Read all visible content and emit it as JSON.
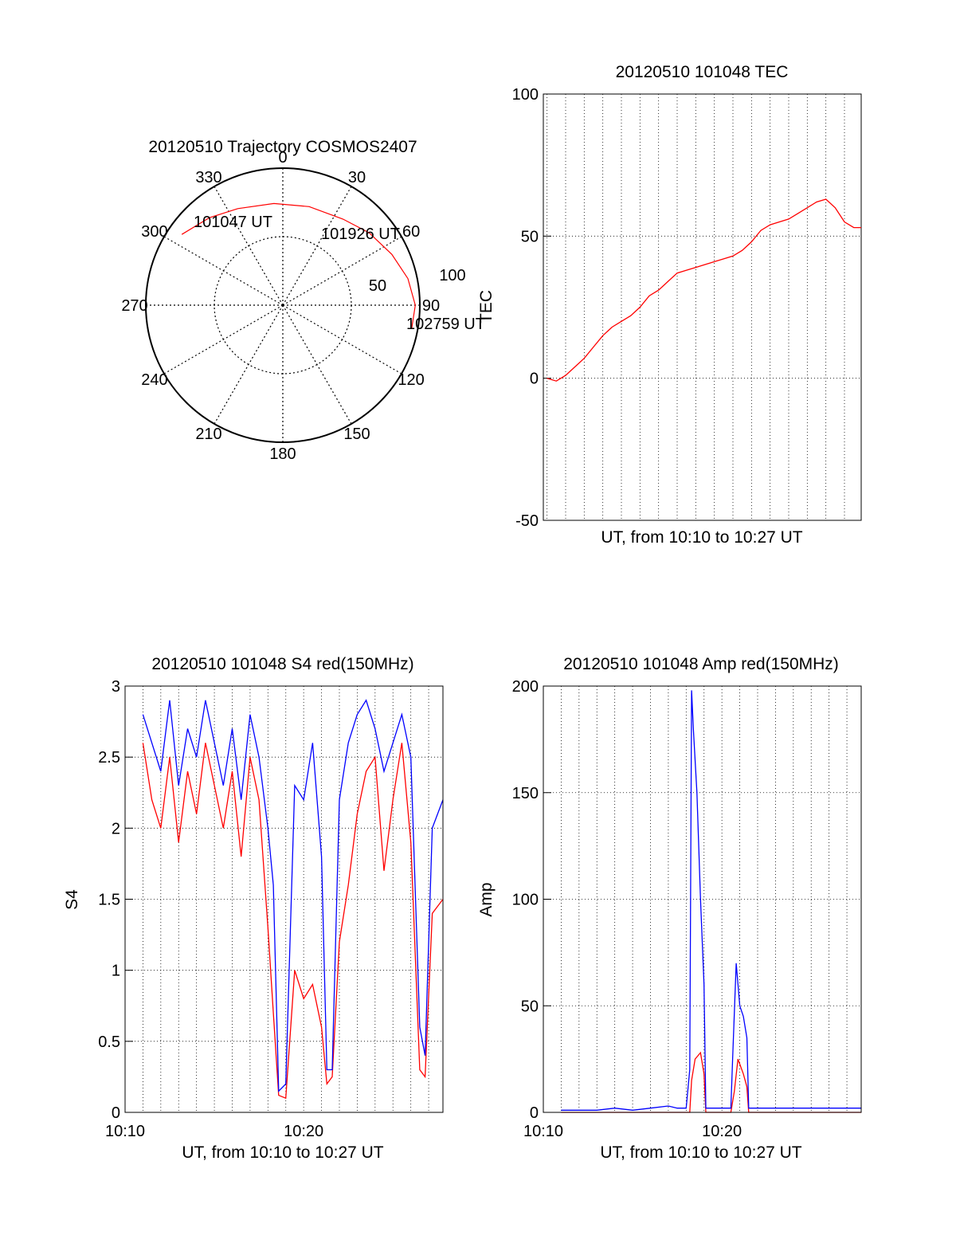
{
  "colors": {
    "red": "#ff0000",
    "blue": "#0000ff",
    "axis": "#000000",
    "grid": "#000000"
  },
  "chart_data": [
    {
      "id": "trajectory",
      "type": "polar",
      "title": "20120510 Trajectory COSMOS2407",
      "azimuth_labels": [
        "0",
        "30",
        "60",
        "90",
        "120",
        "150",
        "180",
        "210",
        "240",
        "270",
        "300",
        "330"
      ],
      "radial_labels": [
        "50",
        "100"
      ],
      "grid": true,
      "track": {
        "color": "red",
        "points": [
          {
            "az": 305,
            "el": 9
          },
          {
            "az": 320,
            "el": 15
          },
          {
            "az": 335,
            "el": 20
          },
          {
            "az": 355,
            "el": 23
          },
          {
            "az": 15,
            "el": 23
          },
          {
            "az": 35,
            "el": 21
          },
          {
            "az": 50,
            "el": 16
          },
          {
            "az": 65,
            "el": 11
          },
          {
            "az": 78,
            "el": 6
          },
          {
            "az": 90,
            "el": 3
          },
          {
            "az": 100,
            "el": 4
          }
        ]
      },
      "annotations": [
        "101047 UT",
        "101926 UT",
        "102759 UT"
      ]
    },
    {
      "id": "tec",
      "type": "line",
      "title": "20120510 101048 TEC",
      "xlabel": "UT, from 10:10 to 10:27 UT",
      "ylabel": "TEC",
      "xlim": [
        10.8,
        27.9
      ],
      "ylim": [
        -50,
        100
      ],
      "y_ticks": [
        "-50",
        "0",
        "50",
        "100"
      ],
      "grid": true,
      "series": [
        {
          "color": "red",
          "x": [
            11.0,
            11.5,
            12.0,
            12.5,
            13.0,
            13.5,
            14.0,
            14.5,
            15.0,
            15.5,
            16.0,
            16.5,
            17.0,
            17.5,
            18.0,
            18.5,
            19.0,
            19.5,
            20.0,
            20.5,
            21.0,
            21.5,
            22.0,
            22.5,
            23.0,
            23.5,
            24.0,
            24.5,
            25.0,
            25.5,
            26.0,
            26.5,
            27.0,
            27.5,
            27.9
          ],
          "y": [
            0,
            -1,
            1,
            4,
            7,
            11,
            15,
            18,
            20,
            22,
            25,
            29,
            31,
            34,
            37,
            38,
            39,
            40,
            41,
            42,
            43,
            45,
            48,
            52,
            54,
            55,
            56,
            58,
            60,
            62,
            63,
            60,
            55,
            53,
            53
          ]
        }
      ]
    },
    {
      "id": "s4",
      "type": "line",
      "title": "20120510 101048 S4 red(150MHz)",
      "xlabel": "UT, from 10:10 to 10:27 UT",
      "ylabel": "S4",
      "xlim": [
        10.0,
        27.8
      ],
      "ylim": [
        0,
        3
      ],
      "x_ticks": [
        {
          "v": 10,
          "label": "10:10"
        },
        {
          "v": 20,
          "label": "10:20"
        }
      ],
      "y_ticks": [
        "0",
        "0.5",
        "1",
        "1.5",
        "2",
        "2.5",
        "3"
      ],
      "grid": true,
      "series": [
        {
          "color": "red",
          "x": [
            11.0,
            11.5,
            12.0,
            12.5,
            13.0,
            13.5,
            14.0,
            14.5,
            15.0,
            15.5,
            16.0,
            16.5,
            17.0,
            17.5,
            18.0,
            18.3,
            18.6,
            19.0,
            19.5,
            20.0,
            20.5,
            21.0,
            21.3,
            21.6,
            22.0,
            22.5,
            23.0,
            23.5,
            24.0,
            24.5,
            25.0,
            25.5,
            26.0,
            26.5,
            26.8,
            27.2,
            27.8
          ],
          "y": [
            2.6,
            2.2,
            2.0,
            2.5,
            1.9,
            2.4,
            2.1,
            2.6,
            2.3,
            2.0,
            2.4,
            1.8,
            2.5,
            2.2,
            1.3,
            0.7,
            0.12,
            0.1,
            1.0,
            0.8,
            0.9,
            0.6,
            0.2,
            0.25,
            1.2,
            1.6,
            2.1,
            2.4,
            2.5,
            1.7,
            2.2,
            2.6,
            1.9,
            0.3,
            0.25,
            1.4,
            1.5
          ]
        },
        {
          "color": "blue",
          "x": [
            11.0,
            11.5,
            12.0,
            12.5,
            13.0,
            13.5,
            14.0,
            14.5,
            15.0,
            15.5,
            16.0,
            16.5,
            17.0,
            17.5,
            18.0,
            18.3,
            18.6,
            19.0,
            19.5,
            20.0,
            20.5,
            21.0,
            21.3,
            21.6,
            22.0,
            22.5,
            23.0,
            23.5,
            24.0,
            24.5,
            25.0,
            25.5,
            26.0,
            26.5,
            26.8,
            27.2,
            27.8
          ],
          "y": [
            2.8,
            2.6,
            2.4,
            2.9,
            2.3,
            2.7,
            2.5,
            2.9,
            2.6,
            2.3,
            2.7,
            2.2,
            2.8,
            2.5,
            2.0,
            1.6,
            0.15,
            0.2,
            2.3,
            2.2,
            2.6,
            1.8,
            0.3,
            0.3,
            2.2,
            2.6,
            2.8,
            2.9,
            2.7,
            2.4,
            2.6,
            2.8,
            2.5,
            0.6,
            0.4,
            2.0,
            2.2
          ]
        }
      ]
    },
    {
      "id": "amp",
      "type": "line",
      "title": "20120510 101048 Amp red(150MHz)",
      "xlabel": "UT, from 10:10 to 10:27 UT",
      "ylabel": "Amp",
      "xlim": [
        10.0,
        27.8
      ],
      "ylim": [
        0,
        200
      ],
      "x_ticks": [
        {
          "v": 10,
          "label": "10:10"
        },
        {
          "v": 20,
          "label": "10:20"
        }
      ],
      "y_ticks": [
        "0",
        "50",
        "100",
        "150",
        "200"
      ],
      "grid": true,
      "series": [
        {
          "color": "red",
          "x": [
            11.0,
            16.5,
            18.2,
            18.3,
            18.5,
            18.8,
            19.0,
            19.1,
            20.5,
            20.7,
            20.9,
            21.2,
            21.4,
            21.5,
            27.8
          ],
          "y": [
            0,
            0,
            0,
            15,
            25,
            28,
            18,
            0,
            0,
            10,
            25,
            18,
            12,
            0,
            0
          ]
        },
        {
          "color": "blue",
          "x": [
            11.0,
            12.0,
            13.0,
            14.0,
            15.0,
            16.0,
            17.0,
            17.5,
            18.0,
            18.2,
            18.3,
            18.4,
            18.6,
            18.8,
            19.0,
            19.1,
            19.5,
            20.5,
            20.6,
            20.8,
            21.0,
            21.2,
            21.4,
            21.5,
            22.0,
            24.0,
            26.0,
            27.8
          ],
          "y": [
            1,
            1,
            1,
            2,
            1,
            2,
            3,
            2,
            2,
            20,
            198,
            180,
            150,
            100,
            60,
            2,
            2,
            2,
            25,
            70,
            50,
            45,
            35,
            2,
            2,
            2,
            2,
            2
          ]
        }
      ]
    }
  ]
}
